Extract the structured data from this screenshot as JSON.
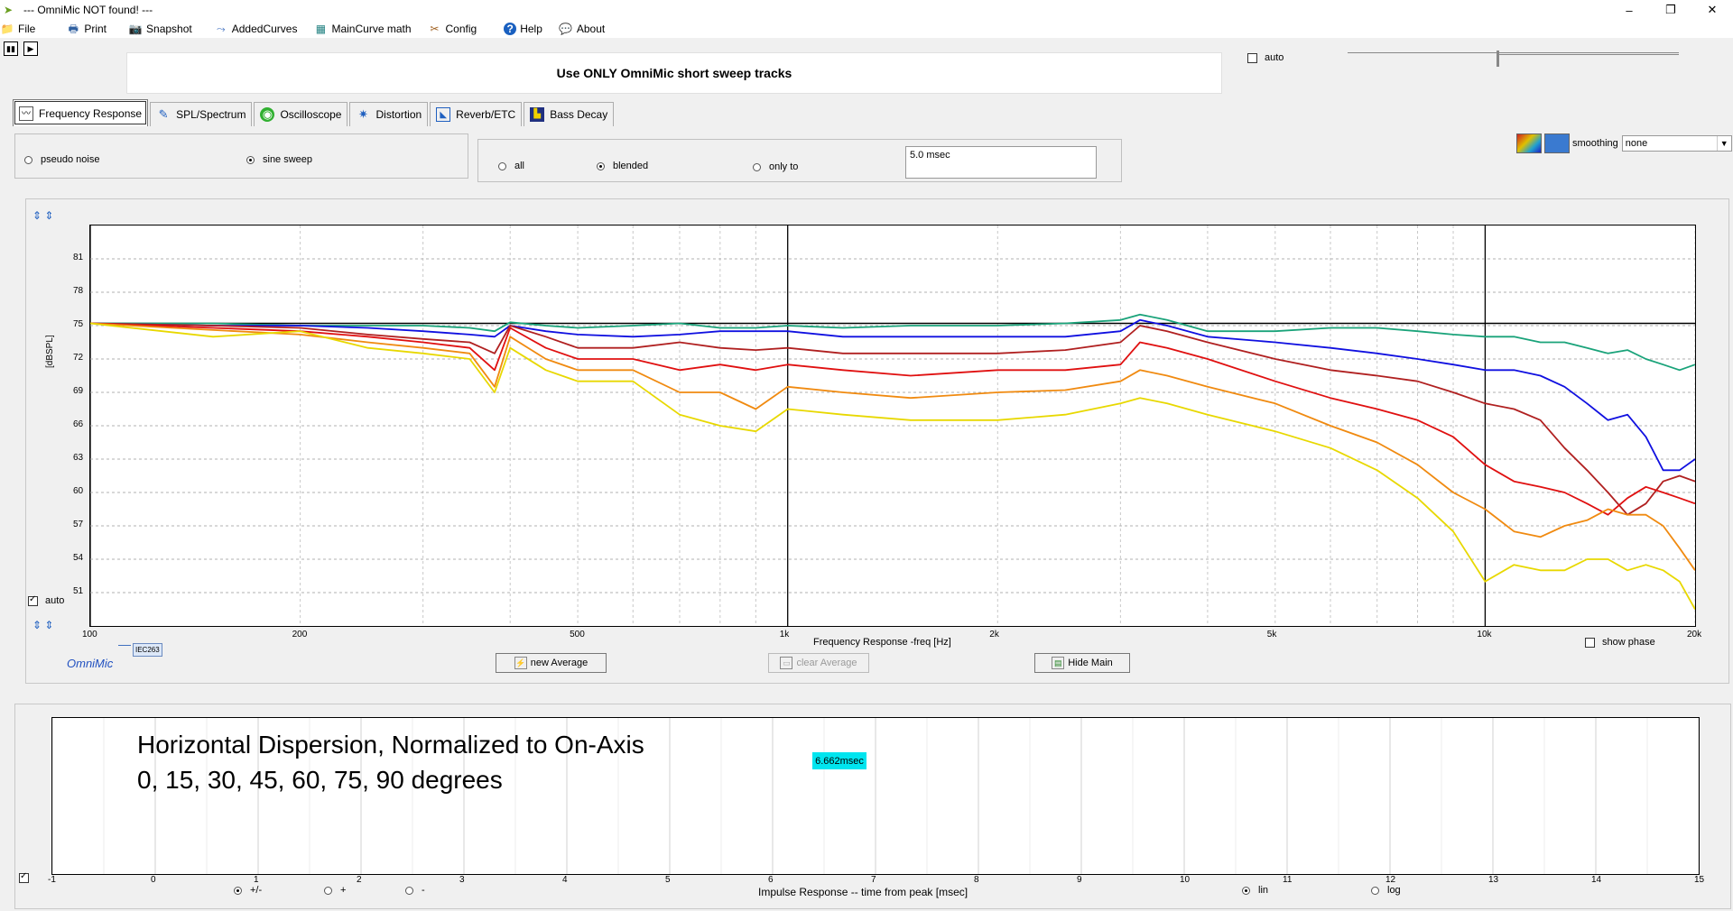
{
  "window": {
    "title": "--- OmniMic NOT found! ---",
    "minimize": "–",
    "maximize": "❐",
    "close": "✕"
  },
  "menu": [
    {
      "label": "File",
      "icon": "folder-icon",
      "glyph": "📁"
    },
    {
      "label": "Print",
      "icon": "printer-icon",
      "glyph": "🖶"
    },
    {
      "label": "Snapshot",
      "icon": "camera-icon",
      "glyph": "📷"
    },
    {
      "label": "AddedCurves",
      "icon": "curves-icon",
      "glyph": "⤳"
    },
    {
      "label": "MainCurve math",
      "icon": "calculator-icon",
      "glyph": "▦"
    },
    {
      "label": "Config",
      "icon": "tools-icon",
      "glyph": "✂"
    },
    {
      "label": "Help",
      "icon": "help-icon",
      "glyph": "?"
    },
    {
      "label": "About",
      "icon": "speech-icon",
      "glyph": "💬"
    }
  ],
  "banner": {
    "text": "Use ONLY OmniMic short sweep tracks"
  },
  "top_auto": {
    "label": "auto",
    "checked": false
  },
  "tabs": [
    {
      "label": "Frequency Response",
      "icon": "freq-response-icon",
      "active": true
    },
    {
      "label": "SPL/Spectrum",
      "icon": "spl-icon",
      "active": false
    },
    {
      "label": "Oscilloscope",
      "icon": "oscilloscope-icon",
      "active": false
    },
    {
      "label": "Distortion",
      "icon": "distortion-icon",
      "active": false
    },
    {
      "label": "Reverb/ETC",
      "icon": "reverb-icon",
      "active": false
    },
    {
      "label": "Bass Decay",
      "icon": "bass-decay-icon",
      "active": false
    }
  ],
  "signal": {
    "pseudo_noise": "pseudo noise",
    "sine_sweep": "sine sweep",
    "selected": "sine sweep"
  },
  "window_mode": {
    "all": "all",
    "blended": "blended",
    "only_to": "only to",
    "selected": "blended",
    "msec_value": "5.0 msec"
  },
  "smoothing": {
    "label": "smoothing",
    "value": "none"
  },
  "plot": {
    "y_unit": "[dBSPL]",
    "x_label": "Frequency Response -freq [Hz]",
    "auto_label": "auto",
    "auto_checked": true,
    "x_tick_labels": [
      "100",
      "200",
      "500",
      "1k",
      "2k",
      "5k",
      "10k",
      "20k"
    ],
    "show_phase": "show phase",
    "legend_tag": "IEC263",
    "logo": "OmniMic"
  },
  "buttons": {
    "new_average": "new Average",
    "clear_average": "clear Average",
    "hide_main": "Hide Main"
  },
  "chart_data": {
    "type": "line",
    "title": "Horizontal Dispersion, Normalized to On-Axis",
    "subtitle": "0, 15, 30, 45, 60, 75, 90 degrees",
    "xlabel": "Frequency Response -freq [Hz]",
    "ylabel": "[dBSPL]",
    "x_scale": "log",
    "xlim": [
      100,
      20000
    ],
    "ylim": [
      48,
      84
    ],
    "yticks": [
      51,
      54,
      57,
      60,
      63,
      66,
      69,
      72,
      75,
      78,
      81
    ],
    "grid": true,
    "x": [
      100,
      150,
      200,
      250,
      300,
      350,
      380,
      400,
      450,
      500,
      600,
      700,
      800,
      900,
      1000,
      1200,
      1500,
      2000,
      2500,
      3000,
      3200,
      3500,
      4000,
      5000,
      6000,
      7000,
      8000,
      9000,
      10000,
      11000,
      12000,
      13000,
      14000,
      15000,
      16000,
      17000,
      18000,
      19000,
      20000
    ],
    "series": [
      {
        "color": "#000000",
        "values": [
          75.2,
          75.2,
          75.2,
          75.2,
          75.2,
          75.2,
          75.2,
          75.2,
          75.2,
          75.2,
          75.2,
          75.2,
          75.2,
          75.2,
          75.2,
          75.2,
          75.2,
          75.2,
          75.2,
          75.2,
          75.2,
          75.2,
          75.2,
          75.2,
          75.2,
          75.2,
          75.2,
          75.2,
          75.2,
          75.2,
          75.2,
          75.2,
          75.2,
          75.2,
          75.2,
          75.2,
          75.2,
          75.2,
          75.2
        ]
      },
      {
        "color": "#1aa37a",
        "values": [
          75.2,
          75.2,
          75.0,
          75.0,
          75.0,
          74.8,
          74.5,
          75.3,
          75.0,
          74.8,
          75.0,
          75.2,
          74.8,
          74.8,
          75.0,
          74.8,
          75.0,
          75.0,
          75.2,
          75.5,
          76.0,
          75.5,
          74.5,
          74.5,
          74.8,
          74.8,
          74.5,
          74.2,
          74.0,
          74.0,
          73.5,
          73.5,
          73.0,
          72.5,
          72.8,
          72.0,
          71.5,
          71.0,
          71.5
        ]
      },
      {
        "color": "#1010e0",
        "values": [
          75.2,
          75.0,
          75.0,
          74.8,
          74.5,
          74.2,
          74.0,
          75.0,
          74.5,
          74.2,
          74.0,
          74.2,
          74.5,
          74.5,
          74.5,
          74.0,
          74.0,
          74.0,
          74.0,
          74.5,
          75.5,
          75.0,
          74.0,
          73.5,
          73.0,
          72.5,
          72.0,
          71.5,
          71.0,
          71.0,
          70.5,
          69.5,
          68.0,
          66.5,
          67.0,
          65.0,
          62.0,
          62.0,
          63.0
        ]
      },
      {
        "color": "#b02020",
        "values": [
          75.2,
          75.0,
          74.8,
          74.2,
          73.8,
          73.5,
          72.5,
          75.0,
          74.0,
          73.0,
          73.0,
          73.5,
          73.0,
          72.8,
          73.0,
          72.5,
          72.5,
          72.5,
          72.8,
          73.5,
          75.0,
          74.5,
          73.5,
          72.0,
          71.0,
          70.5,
          70.0,
          69.0,
          68.0,
          67.5,
          66.5,
          64.0,
          62.0,
          60.0,
          58.0,
          59.0,
          61.0,
          61.5,
          61.0
        ]
      },
      {
        "color": "#e01010",
        "values": [
          75.2,
          74.8,
          74.5,
          74.0,
          73.5,
          73.0,
          71.0,
          74.8,
          73.0,
          72.0,
          72.0,
          71.0,
          71.5,
          71.0,
          71.5,
          71.0,
          70.5,
          71.0,
          71.0,
          71.5,
          73.5,
          73.0,
          72.0,
          70.0,
          68.5,
          67.5,
          66.5,
          65.0,
          62.5,
          61.0,
          60.5,
          60.0,
          59.0,
          58.0,
          59.5,
          60.5,
          60.0,
          59.5,
          59.0
        ]
      },
      {
        "color": "#f08a10",
        "values": [
          75.2,
          74.6,
          74.2,
          73.5,
          73.0,
          72.5,
          69.5,
          74.0,
          72.0,
          71.0,
          71.0,
          69.0,
          69.0,
          67.5,
          69.5,
          69.0,
          68.5,
          69.0,
          69.2,
          70.0,
          71.0,
          70.5,
          69.5,
          68.0,
          66.0,
          64.5,
          62.5,
          60.0,
          58.5,
          56.5,
          56.0,
          57.0,
          57.5,
          58.5,
          58.0,
          58.0,
          57.0,
          55.0,
          53.0
        ]
      },
      {
        "color": "#e8d800",
        "values": [
          75.2,
          74.0,
          74.5,
          73.0,
          72.5,
          72.0,
          69.0,
          73.0,
          71.0,
          70.0,
          70.0,
          67.0,
          66.0,
          65.5,
          67.5,
          67.0,
          66.5,
          66.5,
          67.0,
          68.0,
          68.5,
          68.0,
          67.0,
          65.5,
          64.0,
          62.0,
          59.5,
          56.5,
          52.0,
          53.5,
          53.0,
          53.0,
          54.0,
          54.0,
          53.0,
          53.5,
          53.0,
          52.0,
          49.5
        ]
      }
    ]
  },
  "impulse": {
    "x_label": "Impulse Response  -- time from peak [msec]",
    "tick_labels": [
      "-1",
      "0",
      "1",
      "2",
      "3",
      "4",
      "5",
      "6",
      "7",
      "8",
      "9",
      "10",
      "11",
      "12",
      "13",
      "14",
      "15"
    ],
    "polarity": {
      "pm": "+/-",
      "plus": "+",
      "minus": "-",
      "selected": "+/-"
    },
    "scale": {
      "lin": "lin",
      "log": "log",
      "selected": "lin"
    },
    "marker_value": "6.662msec",
    "auto_checked": true
  }
}
